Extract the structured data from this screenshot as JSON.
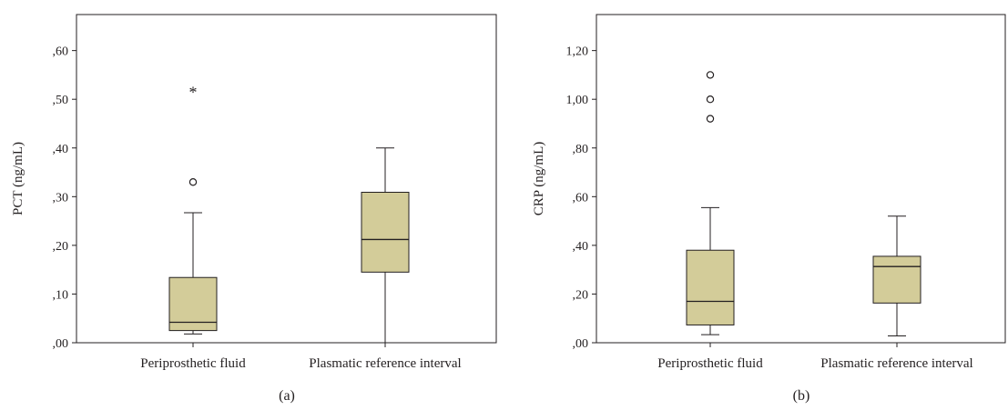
{
  "chart_data": [
    {
      "type": "boxplot",
      "panel_label": "(a)",
      "ylabel": "PCT (ng/mL)",
      "ylim": [
        0,
        0.674
      ],
      "yticks": [
        0,
        0.1,
        0.2,
        0.3,
        0.4,
        0.5,
        0.6
      ],
      "ytick_labels": [
        ",00",
        ",10",
        ",20",
        ",30",
        ",40",
        ",50",
        ",60"
      ],
      "categories": [
        "Periprosthetic fluid",
        "Plasmatic reference interval"
      ],
      "boxes": [
        {
          "whisker_low": 0.018,
          "q1": 0.025,
          "median": 0.042,
          "q3": 0.134,
          "whisker_high": 0.267,
          "outliers": [
            {
              "value": 0.33,
              "marker": "circle"
            },
            {
              "value": 0.52,
              "marker": "star"
            }
          ]
        },
        {
          "whisker_low": 0.0,
          "q1": 0.145,
          "median": 0.212,
          "q3": 0.309,
          "whisker_high": 0.4,
          "outliers": []
        }
      ],
      "box_color": "#d3cc99",
      "grid": false
    },
    {
      "type": "boxplot",
      "panel_label": "(b)",
      "ylabel": "CRP (ng/mL)",
      "ylim": [
        0,
        1.348
      ],
      "yticks": [
        0,
        0.2,
        0.4,
        0.6,
        0.8,
        1.0,
        1.2
      ],
      "ytick_labels": [
        ",00",
        ",20",
        ",40",
        ",60",
        ",80",
        "1,00",
        "1,20"
      ],
      "categories": [
        "Periprosthetic fluid",
        "Plasmatic reference interval"
      ],
      "boxes": [
        {
          "whisker_low": 0.033,
          "q1": 0.073,
          "median": 0.17,
          "q3": 0.38,
          "whisker_high": 0.555,
          "outliers": [
            {
              "value": 0.92,
              "marker": "circle"
            },
            {
              "value": 1.0,
              "marker": "circle"
            },
            {
              "value": 1.1,
              "marker": "circle"
            }
          ]
        },
        {
          "whisker_low": 0.028,
          "q1": 0.163,
          "median": 0.313,
          "q3": 0.355,
          "whisker_high": 0.52,
          "outliers": []
        }
      ],
      "box_color": "#d3cc99",
      "grid": false
    }
  ]
}
